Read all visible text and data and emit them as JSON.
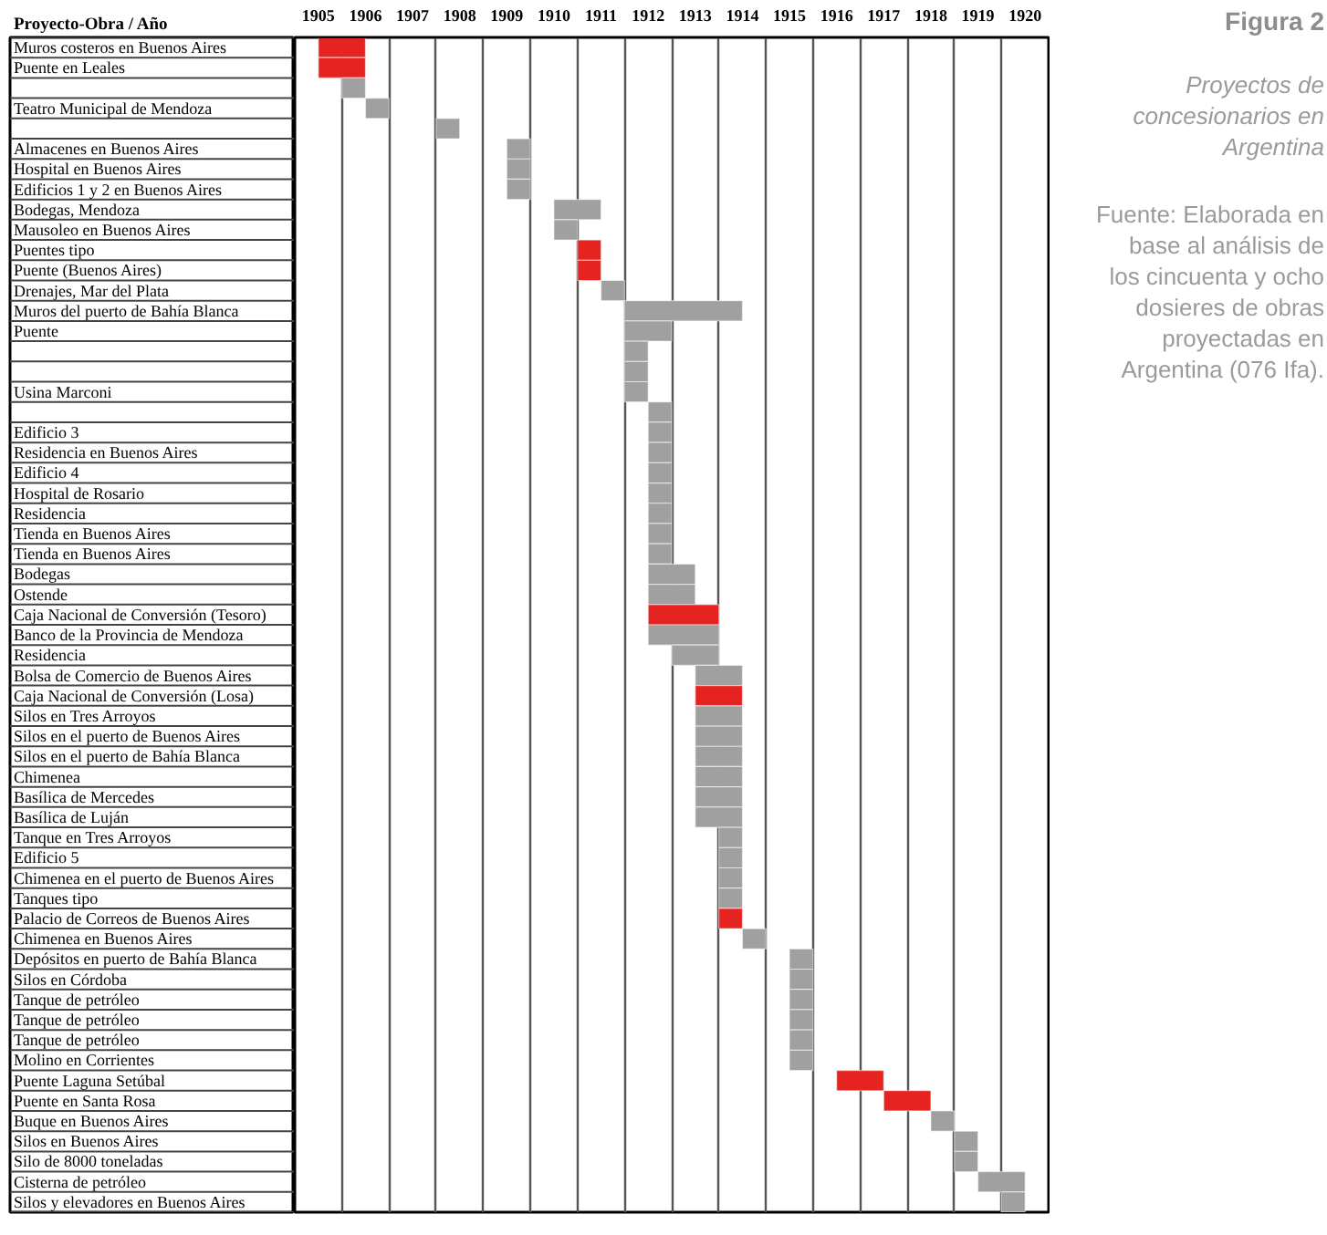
{
  "chart_data": {
    "type": "bar",
    "orientation": "horizontal",
    "title": "Figura 2",
    "subtitle": "Proyectos de concesionarios en Argentina",
    "ylabel": "Proyecto-Obra / Año",
    "annotations": [
      "Fuente: Elaborada en base al análisis de los cincuenta y ocho dosieres de obras proyectadas en Argentina (076 Ifa)."
    ],
    "categories": [
      "Muros costeros en Buenos Aires",
      "Puente en Leales",
      null,
      "Teatro Municipal de Mendoza",
      null,
      "Almacenes en Buenos Aires",
      "Hospital en Buenos Aires",
      "Edificios 1 y 2 en Buenos Aires",
      "Bodegas, Mendoza",
      "Mausoleo en Buenos Aires",
      "Puentes tipo",
      "Puente (Buenos Aires)",
      "Drenajes, Mar del Plata",
      "Muros del puerto de Bahía Blanca",
      "Puente",
      null,
      null,
      "Usina Marconi",
      null,
      "Edificio 3",
      "Residencia en Buenos Aires",
      "Edificio 4",
      "Hospital de Rosario",
      "Residencia",
      "Tienda en Buenos Aires",
      "Tienda en Buenos Aires",
      "Bodegas",
      "Ostende",
      "Caja Nacional de Conversión (Tesoro)",
      "Banco de la Provincia de Mendoza",
      "Residencia",
      "Bolsa de Comercio de Buenos Aires",
      "Caja Nacional de Conversión (Losa)",
      "Silos en Tres Arroyos",
      "Silos en el puerto de Buenos Aires",
      "Silos en el puerto de Bahía Blanca",
      "Chimenea",
      "Basílica de Mercedes",
      "Basílica de Luján",
      "Tanque en Tres Arroyos",
      "Edificio 5",
      "Chimenea en el puerto de Buenos Aires",
      "Tanques tipo",
      "Palacio de Correos de Buenos Aires",
      "Chimenea en Buenos Aires",
      "Depósitos en puerto de Bahía Blanca",
      "Silos en Córdoba",
      "Tanque de petróleo",
      "Tanque de petróleo",
      "Tanque de petróleo",
      "Molino en Corrientes",
      "Puente Laguna Setúbal",
      "Puente en Santa Rosa",
      "Buque en Buenos Aires",
      "Silos en Buenos Aires",
      "Silo de 8000 toneladas",
      "Cisterna de petróleo",
      "Silos y elevadores en Buenos Aires"
    ],
    "base": [
      1905.5,
      1905.5,
      1906,
      1906.5,
      1908,
      1909.5,
      1909.5,
      1909.5,
      1910.5,
      1910.5,
      1911,
      1911,
      1911.5,
      1912,
      1912,
      1912,
      1912,
      1912,
      1912.5,
      1912.5,
      1912.5,
      1912.5,
      1912.5,
      1912.5,
      1912.5,
      1912.5,
      1912.5,
      1912.5,
      1912.5,
      1912.5,
      1913,
      1913.5,
      1913.5,
      1913.5,
      1913.5,
      1913.5,
      1913.5,
      1913.5,
      1913.5,
      1914,
      1914,
      1914,
      1914,
      1914,
      1914.5,
      1915.5,
      1915.5,
      1915.5,
      1915.5,
      1915.5,
      1915.5,
      1916.5,
      1917.5,
      1918.5,
      1919,
      1919,
      1919.5,
      1920
    ],
    "values": [
      1,
      1,
      0.5,
      0.5,
      0.5,
      0.5,
      0.5,
      0.5,
      1,
      0.5,
      0.5,
      0.5,
      0.5,
      2.5,
      1,
      0.5,
      0.5,
      0.5,
      0.5,
      0.5,
      0.5,
      0.5,
      0.5,
      0.5,
      0.5,
      0.5,
      1,
      1,
      1.5,
      1.5,
      1,
      1,
      1,
      1,
      1,
      1,
      1,
      1,
      1,
      0.5,
      0.5,
      0.5,
      0.5,
      0.5,
      0.5,
      0.5,
      0.5,
      0.5,
      0.5,
      0.5,
      0.5,
      1,
      1,
      0.5,
      0.5,
      0.5,
      1,
      0.5
    ],
    "colors": [
      "#e52421",
      "#e52421",
      "#a0a0a0",
      "#a0a0a0",
      "#a0a0a0",
      "#a0a0a0",
      "#a0a0a0",
      "#a0a0a0",
      "#a0a0a0",
      "#a0a0a0",
      "#e52421",
      "#e52421",
      "#a0a0a0",
      "#a0a0a0",
      "#a0a0a0",
      "#a0a0a0",
      "#a0a0a0",
      "#a0a0a0",
      "#a0a0a0",
      "#a0a0a0",
      "#a0a0a0",
      "#a0a0a0",
      "#a0a0a0",
      "#a0a0a0",
      "#a0a0a0",
      "#a0a0a0",
      "#a0a0a0",
      "#a0a0a0",
      "#e52421",
      "#a0a0a0",
      "#a0a0a0",
      "#a0a0a0",
      "#e52421",
      "#a0a0a0",
      "#a0a0a0",
      "#a0a0a0",
      "#a0a0a0",
      "#a0a0a0",
      "#a0a0a0",
      "#a0a0a0",
      "#a0a0a0",
      "#a0a0a0",
      "#a0a0a0",
      "#e52421",
      "#a0a0a0",
      "#a0a0a0",
      "#a0a0a0",
      "#a0a0a0",
      "#a0a0a0",
      "#a0a0a0",
      "#a0a0a0",
      "#e52421",
      "#e52421",
      "#a0a0a0",
      "#a0a0a0",
      "#a0a0a0",
      "#a0a0a0",
      "#a0a0a0"
    ],
    "xlim": [
      1905,
      1921
    ],
    "xticks": [
      {
        "value": 1905.5,
        "label": "1905"
      },
      {
        "value": 1906.5,
        "label": "1906"
      },
      {
        "value": 1907.5,
        "label": "1907"
      },
      {
        "value": 1908.5,
        "label": "1908"
      },
      {
        "value": 1909.5,
        "label": "1909"
      },
      {
        "value": 1910.5,
        "label": "1910"
      },
      {
        "value": 1911.5,
        "label": "1911"
      },
      {
        "value": 1912.5,
        "label": "1912"
      },
      {
        "value": 1913.5,
        "label": "1913"
      },
      {
        "value": 1914.5,
        "label": "1914"
      },
      {
        "value": 1915.5,
        "label": "1915"
      },
      {
        "value": 1916.5,
        "label": "1916"
      },
      {
        "value": 1917.5,
        "label": "1917"
      },
      {
        "value": 1918.5,
        "label": "1918"
      },
      {
        "value": 1919.5,
        "label": "1919"
      },
      {
        "value": 1920.5,
        "label": "1920"
      }
    ],
    "grid": "x"
  }
}
